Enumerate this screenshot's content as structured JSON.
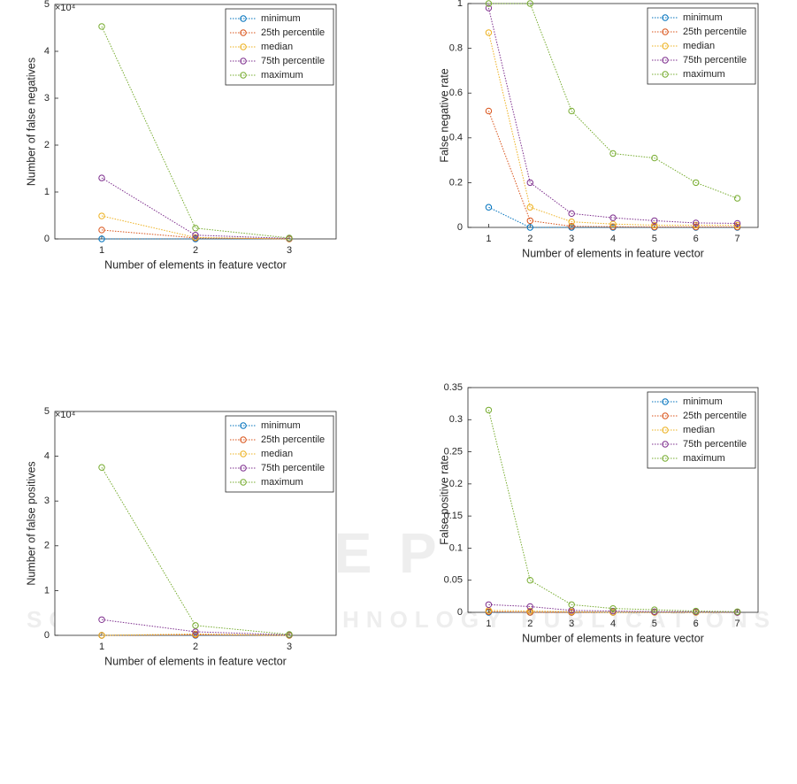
{
  "chart_data": [
    {
      "type": "line",
      "x": [
        1,
        2,
        3
      ],
      "xlim": [
        0.5,
        3.5
      ],
      "xticks": [
        1,
        2,
        3
      ],
      "ylim": [
        0,
        5
      ],
      "yticks": [
        0,
        1,
        2,
        3,
        4,
        5
      ],
      "axis_exponent": "×10⁴",
      "xlabel": "Number of elements in feature vector",
      "ylabel": "Number of false negatives",
      "legend": "upper right",
      "series": [
        {
          "name": "minimum",
          "color": "#0072BD",
          "values": [
            0,
            0,
            0
          ]
        },
        {
          "name": "25th percentile",
          "color": "#D95319",
          "values": [
            0.19,
            0.02,
            0
          ]
        },
        {
          "name": "median",
          "color": "#EDB120",
          "values": [
            0.49,
            0.03,
            0
          ]
        },
        {
          "name": "75th percentile",
          "color": "#7E2F8E",
          "values": [
            1.3,
            0.08,
            0.01
          ]
        },
        {
          "name": "maximum",
          "color": "#77AC30",
          "values": [
            4.53,
            0.23,
            0.02
          ]
        }
      ]
    },
    {
      "type": "line",
      "x": [
        1,
        2,
        3,
        4,
        5,
        6,
        7
      ],
      "xlim": [
        0.5,
        7.5
      ],
      "xticks": [
        1,
        2,
        3,
        4,
        5,
        6,
        7
      ],
      "ylim": [
        0,
        1
      ],
      "yticks": [
        0,
        0.2,
        0.4,
        0.6,
        0.8,
        1
      ],
      "xlabel": "Number of elements in feature vector",
      "ylabel": "False negative rate",
      "legend": "upper right",
      "series": [
        {
          "name": "minimum",
          "color": "#0072BD",
          "values": [
            0.09,
            0,
            0,
            0,
            0,
            0,
            0
          ]
        },
        {
          "name": "25th percentile",
          "color": "#D95319",
          "values": [
            0.52,
            0.03,
            0.005,
            0.003,
            0.002,
            0.002,
            0.002
          ]
        },
        {
          "name": "median",
          "color": "#EDB120",
          "values": [
            0.87,
            0.09,
            0.025,
            0.015,
            0.01,
            0.01,
            0.01
          ]
        },
        {
          "name": "75th percentile",
          "color": "#7E2F8E",
          "values": [
            0.98,
            0.2,
            0.062,
            0.043,
            0.03,
            0.02,
            0.018
          ]
        },
        {
          "name": "maximum",
          "color": "#77AC30",
          "values": [
            1,
            1,
            0.52,
            0.33,
            0.31,
            0.2,
            0.13
          ]
        }
      ]
    },
    {
      "type": "line",
      "x": [
        1,
        2,
        3
      ],
      "xlim": [
        0.5,
        3.5
      ],
      "xticks": [
        1,
        2,
        3
      ],
      "ylim": [
        0,
        5
      ],
      "yticks": [
        0,
        1,
        2,
        3,
        4,
        5
      ],
      "axis_exponent": "×10⁴",
      "xlabel": "Number of elements in feature vector",
      "ylabel": "Number of false positives",
      "legend": "upper right",
      "series": [
        {
          "name": "minimum",
          "color": "#0072BD",
          "values": [
            0,
            0,
            0
          ]
        },
        {
          "name": "25th percentile",
          "color": "#D95319",
          "values": [
            0,
            0.01,
            0
          ]
        },
        {
          "name": "median",
          "color": "#EDB120",
          "values": [
            0,
            0.03,
            0
          ]
        },
        {
          "name": "75th percentile",
          "color": "#7E2F8E",
          "values": [
            0.35,
            0.08,
            0.01
          ]
        },
        {
          "name": "maximum",
          "color": "#77AC30",
          "values": [
            3.75,
            0.22,
            0.02
          ]
        }
      ]
    },
    {
      "type": "line",
      "x": [
        1,
        2,
        3,
        4,
        5,
        6,
        7
      ],
      "xlim": [
        0.5,
        7.5
      ],
      "xticks": [
        1,
        2,
        3,
        4,
        5,
        6,
        7
      ],
      "ylim": [
        0,
        0.35
      ],
      "yticks": [
        0,
        0.05,
        0.1,
        0.15,
        0.2,
        0.25,
        0.3,
        0.35
      ],
      "xlabel": "Number of elements in feature vector",
      "ylabel": "False positive rate",
      "legend": "upper right",
      "series": [
        {
          "name": "minimum",
          "color": "#0072BD",
          "values": [
            0,
            0,
            0,
            0,
            0,
            0,
            0
          ]
        },
        {
          "name": "25th percentile",
          "color": "#D95319",
          "values": [
            0.001,
            0,
            0,
            0,
            0,
            0,
            0
          ]
        },
        {
          "name": "median",
          "color": "#EDB120",
          "values": [
            0.003,
            0.002,
            0.001,
            0,
            0,
            0,
            0
          ]
        },
        {
          "name": "75th percentile",
          "color": "#7E2F8E",
          "values": [
            0.012,
            0.009,
            0.003,
            0.002,
            0.001,
            0.001,
            0
          ]
        },
        {
          "name": "maximum",
          "color": "#77AC30",
          "values": [
            0.315,
            0.05,
            0.012,
            0.006,
            0.004,
            0.002,
            0.001
          ]
        }
      ]
    }
  ],
  "watermark": [
    "SCITEPRESS",
    "SCIENCE AND TECHNOLOGY PUBLICATIONS"
  ]
}
